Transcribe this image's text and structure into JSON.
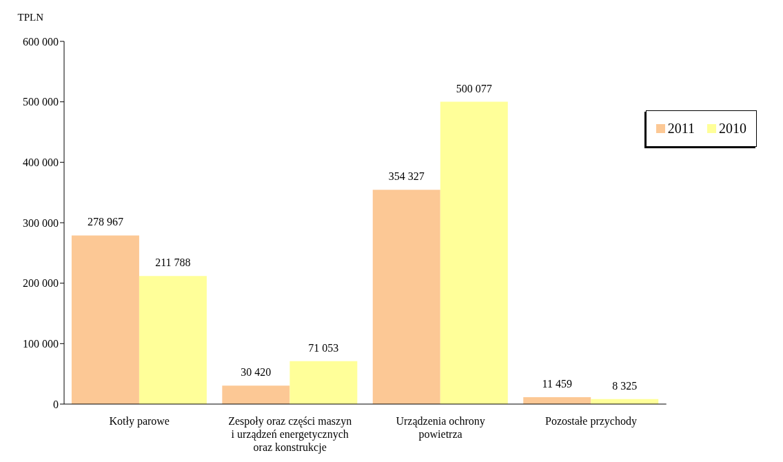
{
  "chart_data": {
    "type": "bar",
    "ylabel": "TPLN",
    "categories": [
      "Kotły parowe",
      "Zespoły oraz części maszyn i urządzeń energetycznych oraz konstrukcje",
      "Urządzenia ochrony powietrza",
      "Pozostałe przychody"
    ],
    "series": [
      {
        "name": "2011",
        "color": "#fcc895",
        "values": [
          278967,
          30420,
          354327,
          11459
        ],
        "value_labels": [
          "278 967",
          "30 420",
          "354 327",
          "11 459"
        ]
      },
      {
        "name": "2010",
        "color": "#ffff99",
        "values": [
          211788,
          71053,
          500077,
          8325
        ],
        "value_labels": [
          "211 788",
          "71 053",
          "500 077",
          "8 325"
        ]
      }
    ],
    "ylim": [
      0,
      600000
    ],
    "yticks": [
      {
        "value": 0,
        "label": "0"
      },
      {
        "value": 100000,
        "label": "100 000"
      },
      {
        "value": 200000,
        "label": "200 000"
      },
      {
        "value": 300000,
        "label": "300 000"
      },
      {
        "value": 400000,
        "label": "400 000"
      },
      {
        "value": 500000,
        "label": "500 000"
      },
      {
        "value": 600000,
        "label": "600 000"
      }
    ],
    "grid": false,
    "legend": "top right"
  }
}
